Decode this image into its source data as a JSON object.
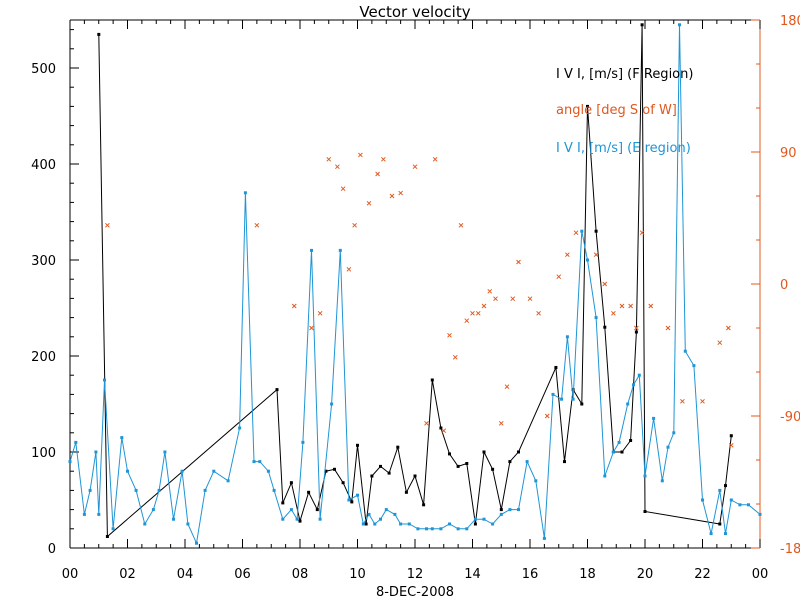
{
  "chart_data": {
    "type": "line",
    "title": "Vector velocity",
    "xlabel": "8-DEC-2008",
    "x_tick_labels": [
      "00",
      "02",
      "04",
      "06",
      "08",
      "10",
      "12",
      "14",
      "16",
      "18",
      "20",
      "22",
      "00"
    ],
    "x_range_hours": [
      0,
      24
    ],
    "y_left": {
      "range": [
        0,
        550
      ],
      "ticks": [
        0,
        100,
        200,
        300,
        400,
        500
      ]
    },
    "y_right": {
      "range": [
        -180,
        180
      ],
      "ticks": [
        -180,
        -90,
        0,
        90,
        180
      ],
      "tick_labels": [
        "-180",
        "-90",
        "0",
        "90",
        "180"
      ]
    },
    "grid": false,
    "legend_placement": "top-right",
    "colors": {
      "axis": "#000000",
      "f_region": "#000000",
      "angle": "#e0581e",
      "e_region": "#1f95d6"
    },
    "series": [
      {
        "name": "I V I, [m/s] (F Region)",
        "color": "#000000",
        "axis": "left",
        "style": "line-dots",
        "x": [
          1.0,
          1.3,
          7.2,
          7.4,
          7.7,
          8.0,
          8.3,
          8.6,
          8.9,
          9.2,
          9.5,
          9.8,
          10.0,
          10.3,
          10.5,
          10.8,
          11.1,
          11.4,
          11.7,
          12.0,
          12.3,
          12.6,
          12.9,
          13.2,
          13.5,
          13.8,
          14.1,
          14.4,
          14.7,
          15.0,
          15.3,
          15.6,
          16.9,
          17.2,
          17.5,
          17.8,
          18.0,
          18.3,
          18.6,
          18.9,
          19.2,
          19.5,
          19.7,
          19.9,
          20.0,
          22.6,
          22.8,
          23.0
        ],
        "y": [
          535,
          12,
          165,
          47,
          68,
          28,
          58,
          40,
          80,
          82,
          68,
          48,
          107,
          25,
          75,
          85,
          78,
          105,
          58,
          75,
          45,
          175,
          125,
          98,
          85,
          88,
          25,
          100,
          82,
          40,
          90,
          100,
          188,
          90,
          165,
          150,
          460,
          330,
          230,
          100,
          100,
          112,
          225,
          545,
          38,
          25,
          65,
          117
        ]
      },
      {
        "name": "angle [deg S of W]",
        "color": "#e0581e",
        "axis": "right",
        "style": "markers",
        "x": [
          1.3,
          6.5,
          7.8,
          8.4,
          8.7,
          9.0,
          9.3,
          9.5,
          9.7,
          9.9,
          10.1,
          10.4,
          10.7,
          10.9,
          11.2,
          11.5,
          12.0,
          12.4,
          12.7,
          13.0,
          13.2,
          13.4,
          13.6,
          13.8,
          14.0,
          14.2,
          14.4,
          14.6,
          14.8,
          15.0,
          15.2,
          15.4,
          15.6,
          16.0,
          16.3,
          16.6,
          17.0,
          17.3,
          17.6,
          18.3,
          18.6,
          18.9,
          19.2,
          19.5,
          19.7,
          19.9,
          20.2,
          20.8,
          21.3,
          22.0,
          22.6,
          22.9,
          23.0
        ],
        "y": [
          40,
          40,
          -15,
          -30,
          -20,
          85,
          80,
          65,
          10,
          40,
          88,
          55,
          75,
          85,
          60,
          62,
          80,
          -95,
          85,
          -100,
          -35,
          -50,
          40,
          -25,
          -20,
          -20,
          -15,
          -5,
          -10,
          -95,
          -70,
          -10,
          15,
          -10,
          -20,
          -90,
          5,
          20,
          35,
          20,
          0,
          -20,
          -15,
          -15,
          -30,
          35,
          -15,
          -30,
          -80,
          -80,
          -40,
          -30,
          -110
        ]
      },
      {
        "name": "I V I, [m/s] (E region)",
        "color": "#1f95d6",
        "axis": "left",
        "style": "line-dots",
        "x": [
          0.0,
          0.2,
          0.5,
          0.7,
          0.9,
          1.0,
          1.2,
          1.5,
          1.8,
          2.0,
          2.3,
          2.6,
          2.9,
          3.1,
          3.3,
          3.6,
          3.9,
          4.1,
          4.4,
          4.7,
          5.0,
          5.5,
          5.9,
          6.1,
          6.4,
          6.6,
          6.9,
          7.1,
          7.4,
          7.7,
          7.9,
          8.1,
          8.4,
          8.7,
          9.1,
          9.4,
          9.7,
          10.0,
          10.2,
          10.4,
          10.6,
          10.8,
          11.0,
          11.3,
          11.5,
          11.8,
          12.1,
          12.4,
          12.6,
          12.9,
          13.2,
          13.5,
          13.8,
          14.1,
          14.4,
          14.7,
          15.0,
          15.3,
          15.6,
          15.9,
          16.2,
          16.5,
          16.8,
          17.1,
          17.3,
          17.5,
          17.8,
          18.0,
          18.3,
          18.6,
          18.9,
          19.1,
          19.4,
          19.6,
          19.8,
          20.0,
          20.3,
          20.6,
          20.8,
          21.0,
          21.2,
          21.4,
          21.7,
          22.0,
          22.3,
          22.6,
          22.8,
          23.0,
          23.3,
          23.6,
          24.0
        ],
        "y": [
          90,
          110,
          35,
          60,
          100,
          35,
          175,
          20,
          115,
          80,
          60,
          25,
          40,
          60,
          100,
          30,
          80,
          25,
          5,
          60,
          80,
          70,
          125,
          370,
          90,
          90,
          80,
          60,
          30,
          40,
          30,
          110,
          310,
          30,
          150,
          310,
          50,
          55,
          25,
          35,
          25,
          30,
          40,
          35,
          25,
          25,
          20,
          20,
          20,
          20,
          25,
          20,
          20,
          30,
          30,
          25,
          35,
          40,
          40,
          90,
          70,
          10,
          160,
          155,
          220,
          155,
          330,
          300,
          240,
          75,
          100,
          110,
          150,
          170,
          180,
          75,
          135,
          70,
          105,
          120,
          545,
          205,
          190,
          50,
          15,
          60,
          15,
          50,
          45,
          45,
          35
        ]
      }
    ]
  }
}
